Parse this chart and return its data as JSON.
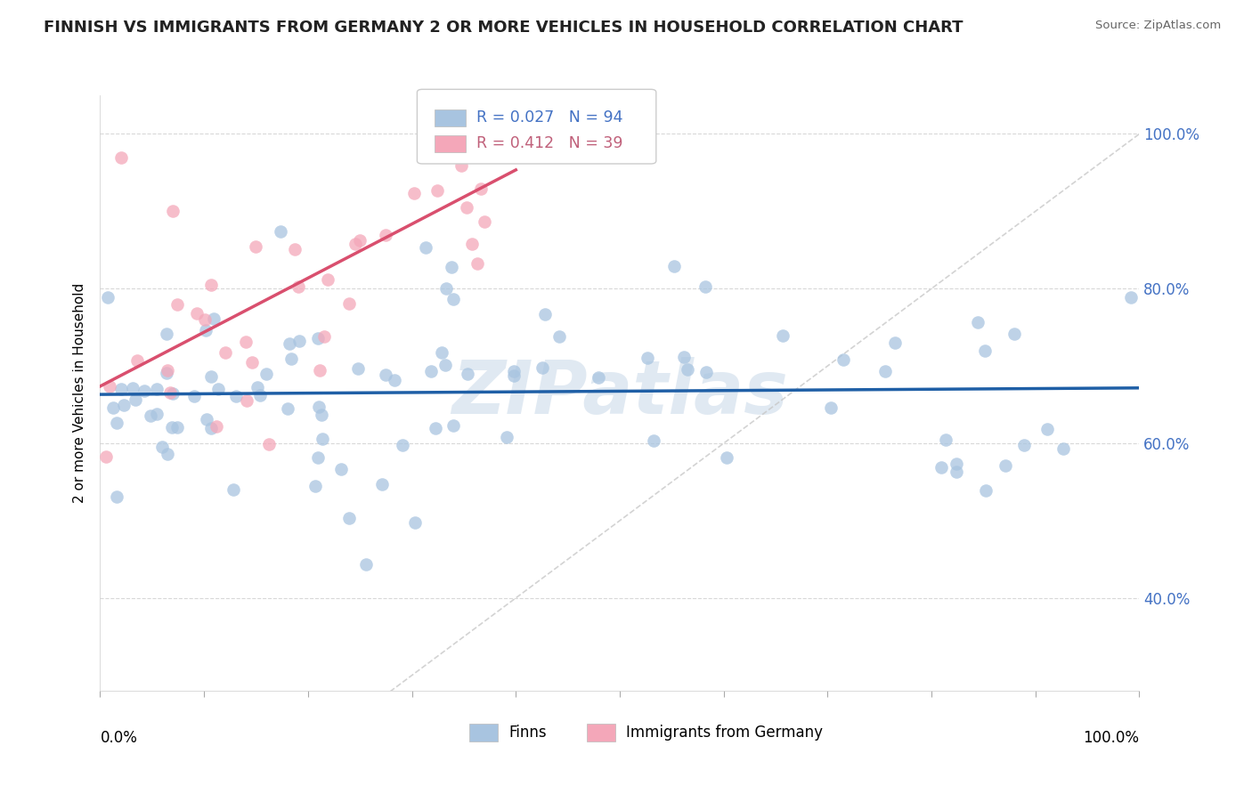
{
  "title": "FINNISH VS IMMIGRANTS FROM GERMANY 2 OR MORE VEHICLES IN HOUSEHOLD CORRELATION CHART",
  "source": "Source: ZipAtlas.com",
  "ylabel": "2 or more Vehicles in Household",
  "r_finns": 0.027,
  "n_finns": 94,
  "r_immigrants": 0.412,
  "n_immigrants": 39,
  "finns_color": "#a8c4e0",
  "immigrants_color": "#f4a7b9",
  "finns_line_color": "#1f5fa6",
  "immigrants_line_color": "#d94f6e",
  "diagonal_color": "#c8c8c8",
  "watermark": "ZIPatlas",
  "watermark_color": "#c8d8e8",
  "legend_text_blue": "#4472c4",
  "legend_text_pink": "#c0607a",
  "right_tick_color": "#4472c4",
  "ylim_min": 0.28,
  "ylim_max": 1.05,
  "xlim_min": 0.0,
  "xlim_max": 1.0,
  "ytick_vals": [
    0.4,
    0.6,
    0.8,
    1.0
  ],
  "ytick_labels": [
    "40.0%",
    "60.0%",
    "80.0%",
    "100.0%"
  ],
  "xtick_vals": [
    0.0,
    0.1,
    0.2,
    0.3,
    0.4,
    0.5,
    0.6,
    0.7,
    0.8,
    0.9,
    1.0
  ]
}
